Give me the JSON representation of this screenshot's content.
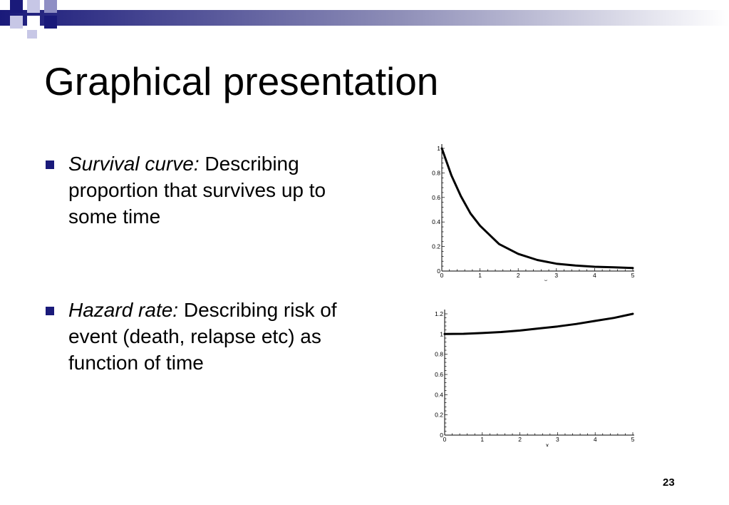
{
  "slide": {
    "title": "Graphical presentation",
    "page_number": "23",
    "accent_color": "#1a1a7a"
  },
  "bullets": [
    {
      "label": "Survival curve:",
      "text": "Describing proportion that survives up to some time"
    },
    {
      "label": "Hazard rate:",
      "text": "Describing risk of event (death, relapse etc) as function of time"
    }
  ],
  "chart_data": [
    {
      "type": "line",
      "xlabel": "x",
      "xlim": [
        0,
        5
      ],
      "ylim": [
        0,
        1
      ],
      "x_ticks": [
        "0",
        "1",
        "2",
        "3",
        "4",
        "5"
      ],
      "y_ticks": [
        "0",
        "0.2",
        "0.4",
        "0.6",
        "0.8",
        "1"
      ],
      "series": [
        {
          "x": [
            0,
            0.25,
            0.5,
            0.75,
            1,
            1.5,
            2,
            2.5,
            3,
            3.5,
            4,
            4.5,
            5
          ],
          "y": [
            1,
            0.78,
            0.61,
            0.47,
            0.37,
            0.22,
            0.14,
            0.09,
            0.06,
            0.045,
            0.035,
            0.03,
            0.025
          ]
        }
      ]
    },
    {
      "type": "line",
      "xlabel": "x",
      "xlim": [
        0,
        5
      ],
      "ylim": [
        0,
        1.2
      ],
      "x_ticks": [
        "0",
        "1",
        "2",
        "3",
        "4",
        "5"
      ],
      "y_ticks": [
        "0",
        "0.2",
        "0.4",
        "0.6",
        "0.8",
        "1",
        "1.2"
      ],
      "series": [
        {
          "x": [
            0,
            0.5,
            1,
            1.5,
            2,
            2.5,
            3,
            3.5,
            4,
            4.5,
            5
          ],
          "y": [
            1,
            1.002,
            1.01,
            1.02,
            1.035,
            1.055,
            1.075,
            1.1,
            1.13,
            1.16,
            1.2
          ]
        }
      ]
    }
  ]
}
